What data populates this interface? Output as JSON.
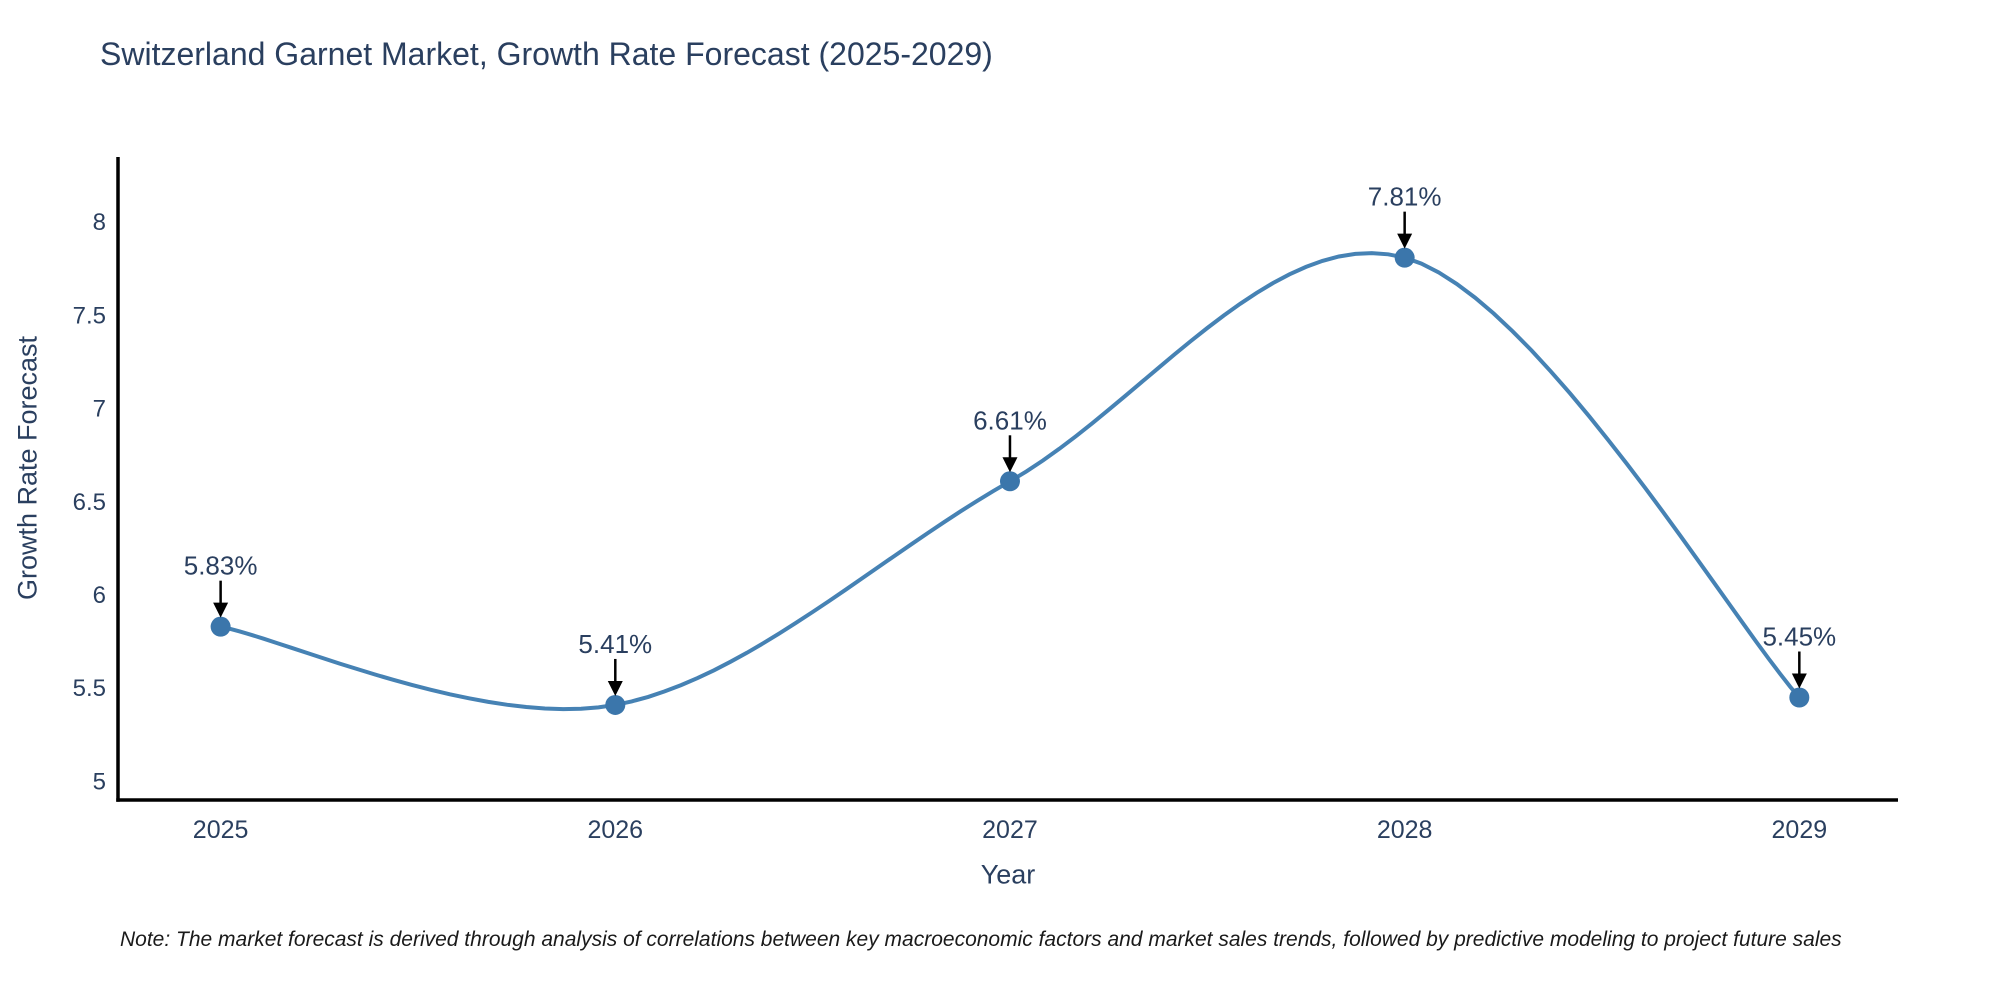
{
  "page": {
    "note": "Note: The market forecast is derived through analysis of correlations between key macroeconomic factors and market sales trends, followed by predictive modeling to project future sales"
  },
  "chart_data": {
    "type": "line",
    "title": "Switzerland Garnet Market, Growth Rate Forecast (2025-2029)",
    "xlabel": "Year",
    "ylabel": "Growth Rate Forecast",
    "x": [
      2025,
      2026,
      2027,
      2028,
      2029
    ],
    "categories": [
      "2025",
      "2026",
      "2027",
      "2028",
      "2029"
    ],
    "series": [
      {
        "name": "Growth Rate Forecast",
        "values": [
          5.83,
          5.41,
          6.61,
          7.81,
          5.45
        ]
      }
    ],
    "point_labels": [
      "5.83%",
      "5.41%",
      "6.61%",
      "7.81%",
      "5.45%"
    ],
    "xticks": [
      "2025",
      "2026",
      "2027",
      "2028",
      "2029"
    ],
    "yticks": [
      "5",
      "5.5",
      "6",
      "6.5",
      "7",
      "7.5",
      "8"
    ],
    "xlim": [
      2024.74,
      2029.25
    ],
    "ylim": [
      4.9,
      8.35
    ],
    "grid": false,
    "legend_position": "none",
    "line_shape": "spline",
    "annotations_have_arrows": true,
    "colors": {
      "line": "#4682b4",
      "marker": "#3b76ab",
      "arrow": "#000000",
      "axis": "#000000",
      "title": "#2a3f5f",
      "tick": "#2a3f5f",
      "note": "#1a1a1a",
      "background": "#ffffff"
    }
  }
}
